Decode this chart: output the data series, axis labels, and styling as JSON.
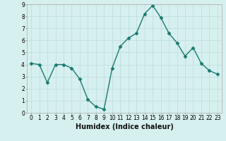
{
  "x": [
    0,
    1,
    2,
    3,
    4,
    5,
    6,
    7,
    8,
    9,
    10,
    11,
    12,
    13,
    14,
    15,
    16,
    17,
    18,
    19,
    20,
    21,
    22,
    23
  ],
  "y": [
    4.1,
    4.0,
    2.5,
    4.0,
    4.0,
    3.7,
    2.8,
    1.1,
    0.5,
    0.3,
    3.7,
    5.5,
    6.2,
    6.6,
    8.2,
    8.9,
    7.9,
    6.6,
    5.8,
    4.7,
    5.4,
    4.1,
    3.5,
    3.2
  ],
  "line_color": "#1a7a6e",
  "marker": "D",
  "marker_size": 2.5,
  "bg_color": "#d6f0ef",
  "grid_color": "#c0dedd",
  "xlabel": "Humidex (Indice chaleur)",
  "xlim": [
    -0.5,
    23.5
  ],
  "ylim": [
    0,
    9
  ],
  "yticks": [
    0,
    1,
    2,
    3,
    4,
    5,
    6,
    7,
    8,
    9
  ],
  "xticks": [
    0,
    1,
    2,
    3,
    4,
    5,
    6,
    7,
    8,
    9,
    10,
    11,
    12,
    13,
    14,
    15,
    16,
    17,
    18,
    19,
    20,
    21,
    22,
    23
  ],
  "tick_fontsize": 5.5,
  "xlabel_fontsize": 7,
  "linewidth": 1.0
}
